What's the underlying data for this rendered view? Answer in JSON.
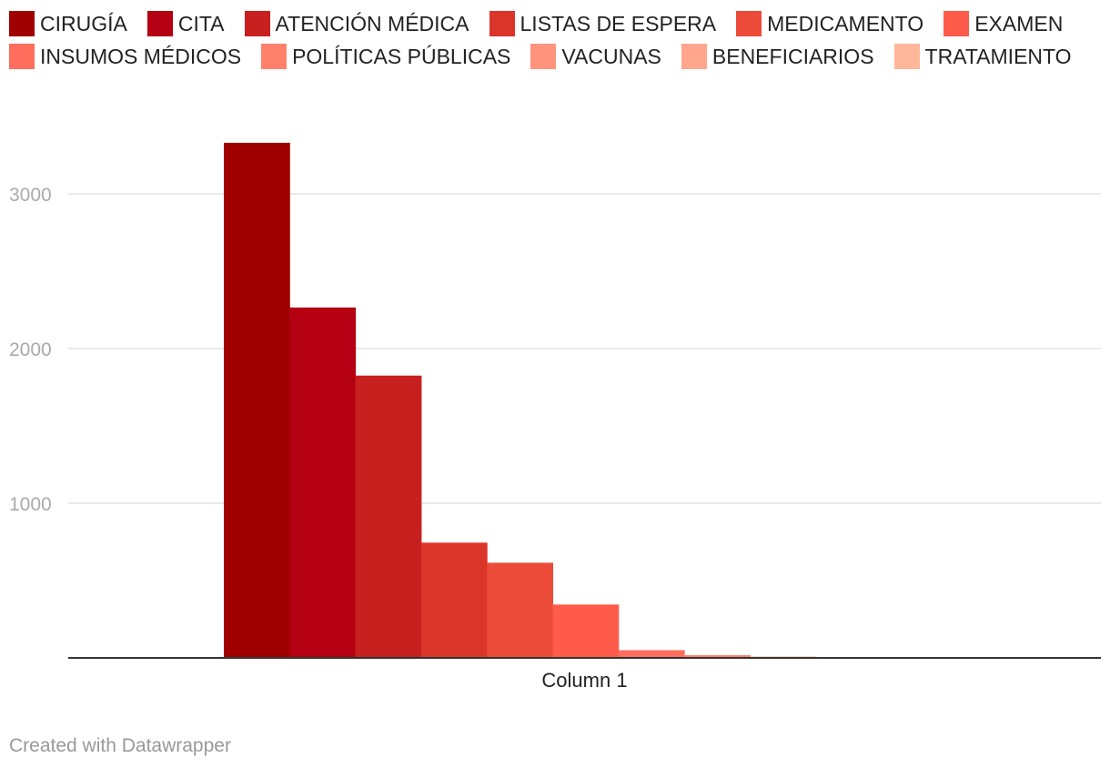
{
  "chart_data": {
    "type": "bar",
    "categories": [
      "Column 1"
    ],
    "series": [
      {
        "name": "CIRUGÍA",
        "values": [
          3330
        ],
        "color": "#a00000"
      },
      {
        "name": "CITA",
        "values": [
          2265
        ],
        "color": "#b40012"
      },
      {
        "name": "ATENCIÓN MÉDICA",
        "values": [
          1825
        ],
        "color": "#c81f1f"
      },
      {
        "name": "LISTAS DE ESPERA",
        "values": [
          745
        ],
        "color": "#db3428"
      },
      {
        "name": "MEDICAMENTO",
        "values": [
          615
        ],
        "color": "#ec4b3a"
      },
      {
        "name": "EXAMEN",
        "values": [
          345
        ],
        "color": "#ff5b4a"
      },
      {
        "name": "INSUMOS MÉDICOS",
        "values": [
          50
        ],
        "color": "#ff6e5c"
      },
      {
        "name": "POLÍTICAS PÚBLICAS",
        "values": [
          18
        ],
        "color": "#ff816c"
      },
      {
        "name": "VACUNAS",
        "values": [
          8
        ],
        "color": "#ff937c"
      },
      {
        "name": "BENEFICIARIOS",
        "values": [
          3
        ],
        "color": "#ffa68d"
      },
      {
        "name": "TRATAMIENTO",
        "values": [
          2
        ],
        "color": "#ffb79c"
      }
    ],
    "title": "",
    "xlabel": "",
    "ylabel": "",
    "ylim": [
      0,
      3400
    ],
    "yticks": [
      1000,
      2000,
      3000
    ],
    "grid": true,
    "legend": "top"
  },
  "footer": {
    "credit": "Created with Datawrapper"
  }
}
